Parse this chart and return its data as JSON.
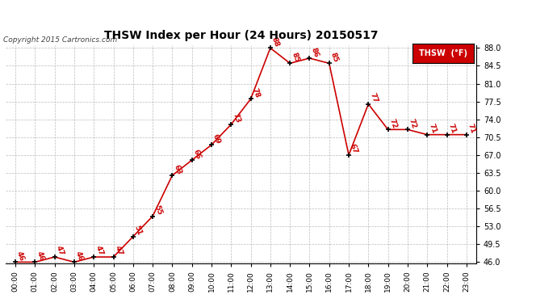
{
  "title": "THSW Index per Hour (24 Hours) 20150517",
  "copyright": "Copyright 2015 Cartronics.com",
  "legend_label": "THSW  (°F)",
  "hours": [
    "00:00",
    "01:00",
    "02:00",
    "03:00",
    "04:00",
    "05:00",
    "06:00",
    "07:00",
    "08:00",
    "09:00",
    "10:00",
    "11:00",
    "12:00",
    "13:00",
    "14:00",
    "15:00",
    "16:00",
    "17:00",
    "18:00",
    "19:00",
    "20:00",
    "21:00",
    "22:00",
    "23:00"
  ],
  "values": [
    46,
    46,
    47,
    46,
    47,
    47,
    51,
    55,
    63,
    66,
    69,
    73,
    78,
    88,
    85,
    86,
    85,
    67,
    77,
    72,
    72,
    71,
    71,
    71
  ],
  "line_color": "#cc0000",
  "marker_color": "#000000",
  "label_color": "#cc0000",
  "background_color": "#ffffff",
  "grid_color": "#aaaaaa",
  "title_color": "#000000",
  "copyright_color": "#444444",
  "ylim_min": 46.0,
  "ylim_max": 88.0,
  "yticks": [
    46.0,
    49.5,
    53.0,
    56.5,
    60.0,
    63.5,
    67.0,
    70.5,
    74.0,
    77.5,
    81.0,
    84.5,
    88.0
  ],
  "legend_bg": "#cc0000",
  "legend_text_color": "#ffffff"
}
